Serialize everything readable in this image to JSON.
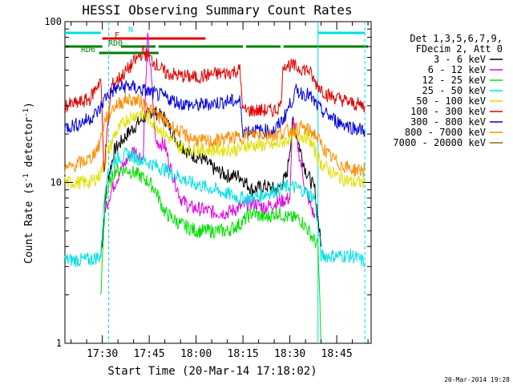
{
  "chart_data": {
    "type": "line",
    "title": "HESSI Observing Summary Count Rates",
    "xlabel": "Start Time (20-Mar-14 17:18:02)",
    "ylabel": "Count Rate (s-1 detector-1)",
    "yscale": "log",
    "ylim": [
      1,
      100
    ],
    "xlim": [
      "17:18:02",
      "18:56:00"
    ],
    "x_ticks": [
      "17:30",
      "17:45",
      "18:00",
      "18:15",
      "18:30",
      "18:45"
    ],
    "y_ticks": [
      "1",
      "10",
      "100"
    ],
    "legend_header": [
      "Det 1,3,5,6,7,9,",
      "FDecim 2, Att 0"
    ],
    "legend_position": "right",
    "footer_date": "20-Mar-2014 19:28",
    "series": [
      {
        "name": "3 - 6 keV",
        "color": "#000000",
        "points": [
          [
            "17:29:30",
            3.5
          ],
          [
            "17:31:30",
            10
          ],
          [
            "17:34:00",
            16
          ],
          [
            "17:38:00",
            20
          ],
          [
            "17:42:00",
            24
          ],
          [
            "17:46:00",
            28
          ],
          [
            "17:50:00",
            25
          ],
          [
            "17:54:00",
            18
          ],
          [
            "17:58:00",
            15
          ],
          [
            "18:02:00",
            14
          ],
          [
            "18:06:00",
            12
          ],
          [
            "18:10:00",
            11
          ],
          [
            "18:14:00",
            11
          ],
          [
            "18:18:00",
            9
          ],
          [
            "18:22:00",
            9.5
          ],
          [
            "18:26:00",
            9
          ],
          [
            "18:29:00",
            11
          ],
          [
            "18:31:00",
            24
          ],
          [
            "18:35:00",
            12
          ],
          [
            "18:38:00",
            9
          ],
          [
            "18:40:00",
            4
          ]
        ]
      },
      {
        "name": "6 - 12 keV",
        "color": "#e000e0",
        "points": [
          [
            "17:31:00",
            7
          ],
          [
            "17:33:00",
            9
          ],
          [
            "17:36:00",
            12
          ],
          [
            "17:40:00",
            16
          ],
          [
            "17:43:00",
            14
          ],
          [
            "17:44:30",
            80
          ],
          [
            "17:45:30",
            50
          ],
          [
            "17:47:00",
            18
          ],
          [
            "17:50:00",
            17
          ],
          [
            "17:52:00",
            12
          ],
          [
            "17:55:00",
            8
          ],
          [
            "17:58:00",
            7
          ],
          [
            "18:02:00",
            6.8
          ],
          [
            "18:06:00",
            6.5
          ],
          [
            "18:10:00",
            6.5
          ],
          [
            "18:14:00",
            7
          ],
          [
            "18:18:00",
            7.5
          ],
          [
            "18:22:00",
            7
          ],
          [
            "18:26:00",
            7.5
          ],
          [
            "18:30:00",
            8
          ],
          [
            "18:31:00",
            25
          ],
          [
            "18:33:00",
            15
          ],
          [
            "18:35:00",
            9
          ],
          [
            "18:38:00",
            6
          ]
        ]
      },
      {
        "name": "12 - 25 keV",
        "color": "#00e000",
        "points": [
          [
            "17:29:30",
            2
          ],
          [
            "17:31:00",
            8
          ],
          [
            "17:34:00",
            12
          ],
          [
            "17:38:00",
            12
          ],
          [
            "17:42:00",
            11
          ],
          [
            "17:45:00",
            10
          ],
          [
            "17:47:00",
            9
          ],
          [
            "17:50:00",
            6.5
          ],
          [
            "17:55:00",
            5.5
          ],
          [
            "18:00:00",
            5
          ],
          [
            "18:05:00",
            5
          ],
          [
            "18:10:00",
            5
          ],
          [
            "18:14:00",
            5.5
          ],
          [
            "18:18:00",
            6.5
          ],
          [
            "18:22:00",
            6
          ],
          [
            "18:26:00",
            6.5
          ],
          [
            "18:30:00",
            6
          ],
          [
            "18:33:00",
            6
          ],
          [
            "18:36:00",
            5
          ],
          [
            "18:39:00",
            4
          ],
          [
            "18:40:00",
            1
          ]
        ]
      },
      {
        "name": "25 - 50 keV",
        "color": "#00e0e0",
        "points": [
          [
            "17:18:02",
            3.3
          ],
          [
            "17:22:00",
            3.3
          ],
          [
            "17:26:00",
            3.3
          ],
          [
            "17:29:30",
            3.5
          ],
          [
            "17:31:00",
            10
          ],
          [
            "17:34:00",
            14
          ],
          [
            "17:38:00",
            15
          ],
          [
            "17:42:00",
            14
          ],
          [
            "17:46:00",
            13
          ],
          [
            "17:50:00",
            12
          ],
          [
            "17:54:00",
            11
          ],
          [
            "17:58:00",
            10
          ],
          [
            "18:02:00",
            9.5
          ],
          [
            "18:06:00",
            9
          ],
          [
            "18:10:00",
            8.5
          ],
          [
            "18:14:00",
            8
          ],
          [
            "18:18:00",
            8
          ],
          [
            "18:22:00",
            8.5
          ],
          [
            "18:26:00",
            9
          ],
          [
            "18:30:00",
            9.5
          ],
          [
            "18:34:00",
            9
          ],
          [
            "18:38:00",
            8
          ],
          [
            "18:40:00",
            3.5
          ],
          [
            "18:45:00",
            3.5
          ],
          [
            "18:50:00",
            3.5
          ],
          [
            "18:54:00",
            3.2
          ]
        ]
      },
      {
        "name": "50 - 100 keV",
        "color": "#e0e000",
        "points": [
          [
            "17:18:02",
            10
          ],
          [
            "17:22:00",
            10
          ],
          [
            "17:26:00",
            10
          ],
          [
            "17:29:00",
            11
          ],
          [
            "17:31:00",
            14
          ],
          [
            "17:34:00",
            20
          ],
          [
            "17:38:00",
            25
          ],
          [
            "17:42:00",
            27
          ],
          [
            "17:46:00",
            24
          ],
          [
            "17:50:00",
            20
          ],
          [
            "17:54:00",
            17
          ],
          [
            "17:58:00",
            16
          ],
          [
            "18:02:00",
            16
          ],
          [
            "18:06:00",
            16
          ],
          [
            "18:10:00",
            16
          ],
          [
            "18:14:00",
            16
          ],
          [
            "18:15:00",
            17
          ],
          [
            "18:20:00",
            17
          ],
          [
            "18:25:00",
            17
          ],
          [
            "18:28:00",
            18
          ],
          [
            "18:32:00",
            20
          ],
          [
            "18:36:00",
            19
          ],
          [
            "18:40:00",
            13
          ],
          [
            "18:45:00",
            11
          ],
          [
            "18:50:00",
            10
          ],
          [
            "18:54:00",
            10
          ]
        ]
      },
      {
        "name": "100 - 300 keV",
        "color": "#e00000",
        "points": [
          [
            "17:18:02",
            30
          ],
          [
            "17:22:00",
            31
          ],
          [
            "17:26:00",
            33
          ],
          [
            "17:29:30",
            44
          ],
          [
            "17:30:30",
            12
          ],
          [
            "17:33:00",
            40
          ],
          [
            "17:38:00",
            50
          ],
          [
            "17:43:00",
            65
          ],
          [
            "17:47:00",
            55
          ],
          [
            "17:50:00",
            48
          ],
          [
            "17:55:00",
            46
          ],
          [
            "18:00:00",
            45
          ],
          [
            "18:05:00",
            47
          ],
          [
            "18:10:00",
            48
          ],
          [
            "18:14:00",
            50
          ],
          [
            "18:15:00",
            28
          ],
          [
            "18:20:00",
            28
          ],
          [
            "18:25:00",
            28
          ],
          [
            "18:27:00",
            30
          ],
          [
            "18:28:00",
            55
          ],
          [
            "18:32:00",
            52
          ],
          [
            "18:36:00",
            50
          ],
          [
            "18:38:00",
            42
          ],
          [
            "18:42:00",
            35
          ],
          [
            "18:46:00",
            33
          ],
          [
            "18:50:00",
            31
          ],
          [
            "18:54:00",
            30
          ]
        ]
      },
      {
        "name": "300 - 800 keV",
        "color": "#0000e0",
        "points": [
          [
            "17:18:02",
            22
          ],
          [
            "17:22:00",
            23
          ],
          [
            "17:26:00",
            25
          ],
          [
            "17:29:00",
            28
          ],
          [
            "17:31:00",
            34
          ],
          [
            "17:34:00",
            38
          ],
          [
            "17:38:00",
            40
          ],
          [
            "17:42:00",
            38
          ],
          [
            "17:46:00",
            36
          ],
          [
            "17:50:00",
            34
          ],
          [
            "17:55:00",
            31
          ],
          [
            "18:00:00",
            30
          ],
          [
            "18:05:00",
            31
          ],
          [
            "18:10:00",
            32
          ],
          [
            "18:14:00",
            32
          ],
          [
            "18:15:00",
            21
          ],
          [
            "18:20:00",
            21
          ],
          [
            "18:25:00",
            21
          ],
          [
            "18:28:00",
            25
          ],
          [
            "18:32:00",
            37
          ],
          [
            "18:36:00",
            35
          ],
          [
            "18:40:00",
            28
          ],
          [
            "18:45:00",
            24
          ],
          [
            "18:50:00",
            22
          ],
          [
            "18:54:00",
            21
          ]
        ]
      },
      {
        "name": "800 - 7000 keV",
        "color": "#ff8c00",
        "points": [
          [
            "17:18:02",
            12
          ],
          [
            "17:22:00",
            13
          ],
          [
            "17:26:00",
            14
          ],
          [
            "17:29:00",
            17
          ],
          [
            "17:31:00",
            25
          ],
          [
            "17:34:00",
            30
          ],
          [
            "17:38:00",
            33
          ],
          [
            "17:42:00",
            32
          ],
          [
            "17:46:00",
            28
          ],
          [
            "17:50:00",
            24
          ],
          [
            "17:54:00",
            21
          ],
          [
            "17:58:00",
            19
          ],
          [
            "18:02:00",
            18
          ],
          [
            "18:06:00",
            18
          ],
          [
            "18:10:00",
            19
          ],
          [
            "18:14:00",
            19
          ],
          [
            "18:18:00",
            20
          ],
          [
            "18:22:00",
            20
          ],
          [
            "18:26:00",
            20
          ],
          [
            "18:30:00",
            21
          ],
          [
            "18:34:00",
            22
          ],
          [
            "18:38:00",
            20
          ],
          [
            "18:42:00",
            15
          ],
          [
            "18:46:00",
            13
          ],
          [
            "18:50:00",
            12
          ],
          [
            "18:54:00",
            12
          ]
        ]
      },
      {
        "name": "7000 - 20000 keV",
        "color": "#8b6914",
        "points": [
          [
            "17:18:02",
            1
          ]
        ]
      }
    ],
    "bars": [
      {
        "label": "N",
        "color": "#00e0e0",
        "segments": [
          [
            "17:18:02",
            "17:29:30"
          ],
          [
            "18:39:00",
            "18:54:00"
          ]
        ]
      },
      {
        "label": "F",
        "color": "#e00000",
        "segments": [
          [
            "17:30:00",
            "18:03:00"
          ]
        ]
      },
      {
        "label": "RD0",
        "color": "#008000",
        "segments": [
          [
            "17:18:02",
            "17:30:00"
          ],
          [
            "17:36:00",
            "17:47:00"
          ],
          [
            "17:48:00",
            "18:15:00"
          ],
          [
            "18:16:00",
            "18:27:00"
          ],
          [
            "18:28:00",
            "18:55:00"
          ]
        ]
      },
      {
        "label": "RD6",
        "color": "#008000",
        "segments": [
          [
            "17:29:00",
            "17:48:00"
          ]
        ]
      }
    ],
    "vlines": [
      {
        "x": "17:32:00",
        "color": "#00e0e0",
        "style": "dashed"
      },
      {
        "x": "18:39:00",
        "color": "#00e0e0",
        "style": "solid"
      },
      {
        "x": "18:54:00",
        "color": "#00e0e0",
        "style": "dashed"
      }
    ]
  }
}
